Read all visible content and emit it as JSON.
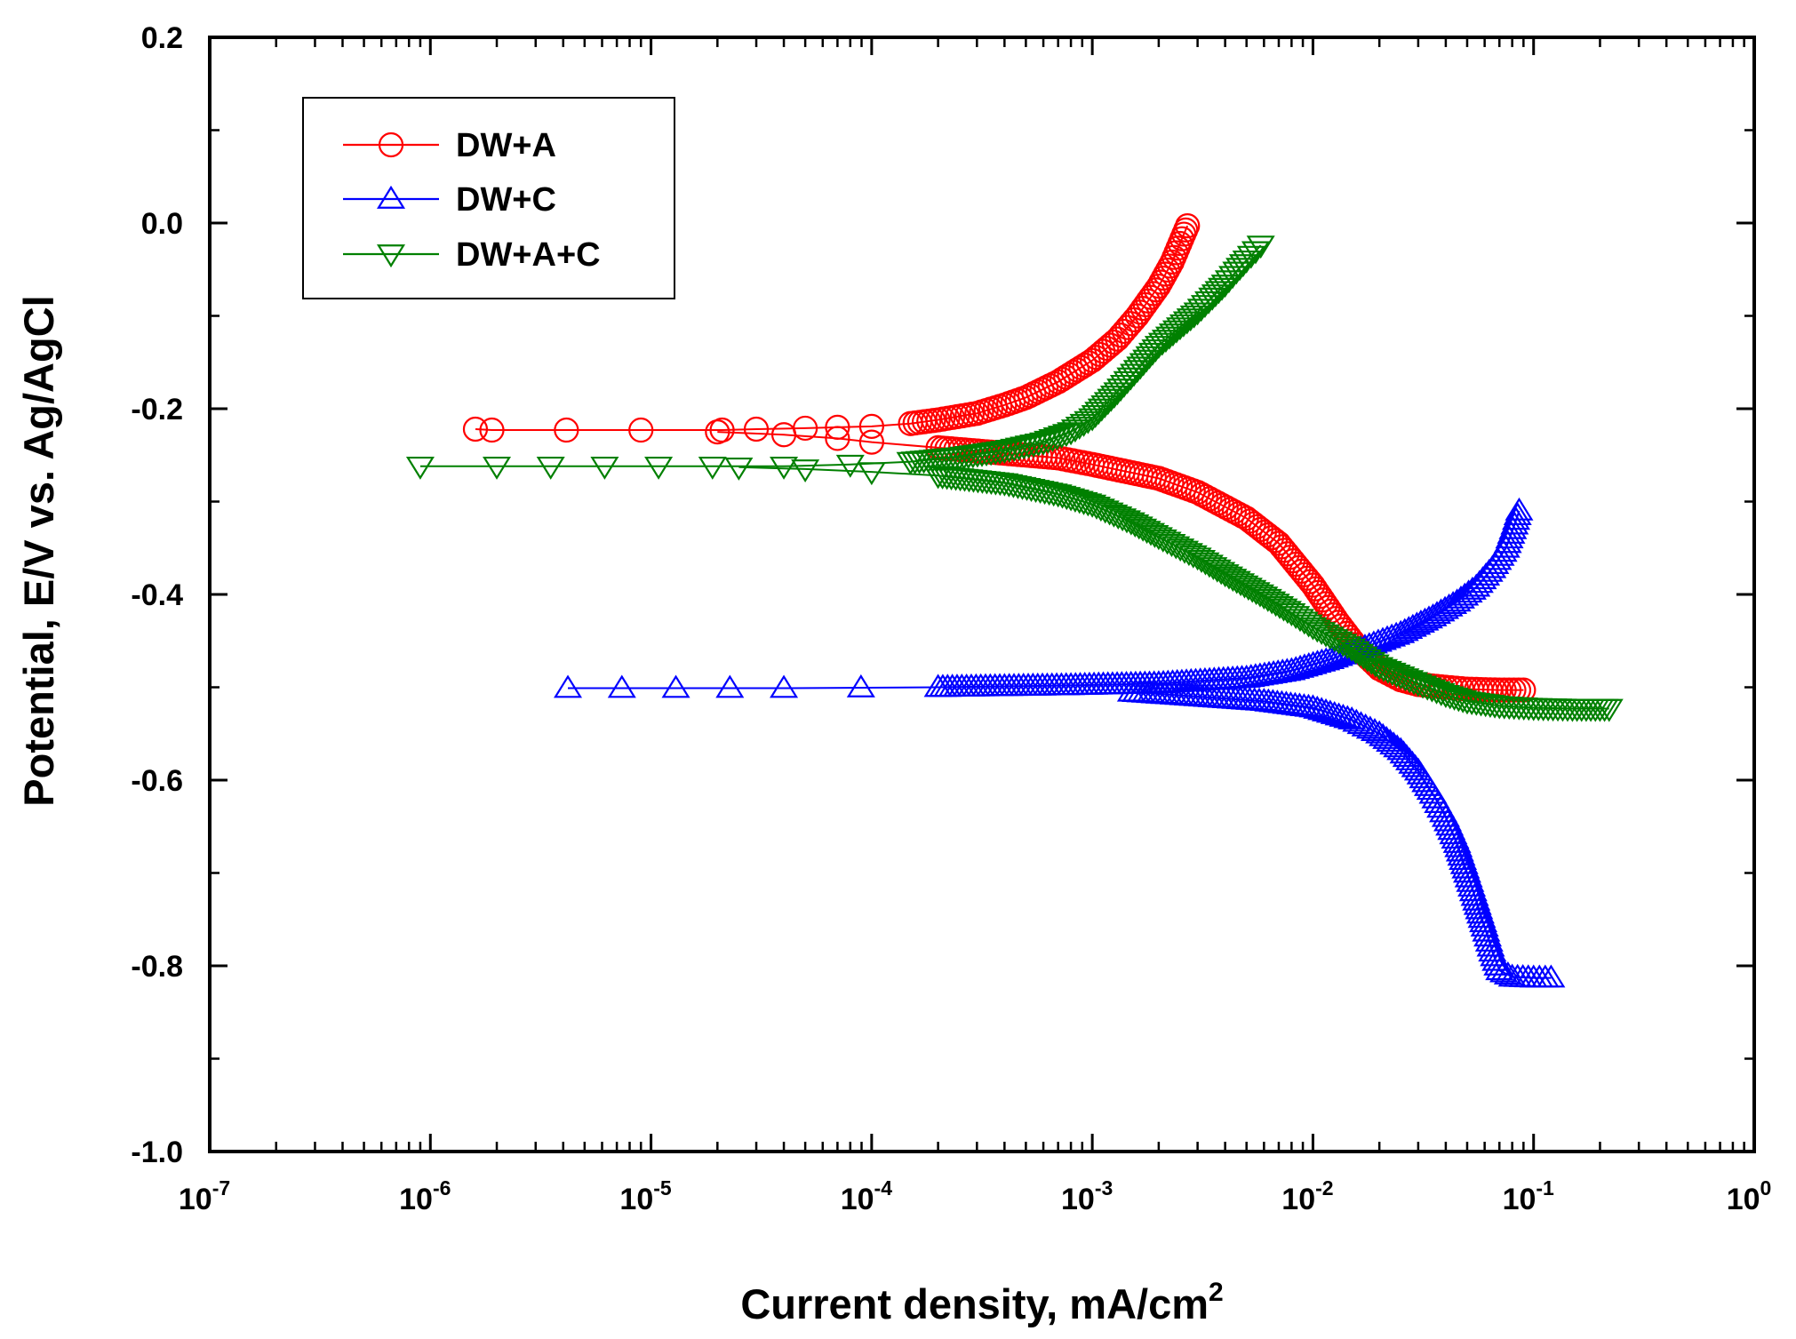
{
  "chart_data": {
    "type": "scatter",
    "title": "",
    "xlabel": "Current density, mA/cm",
    "xlabel_sup": "2",
    "ylabel": "Potential, E/V vs. Ag/AgCl",
    "xscale": "log",
    "xlim": [
      1e-07,
      1
    ],
    "ylim": [
      -1.0,
      0.2
    ],
    "x_ticks": [
      {
        "value": 1e-07,
        "base": "10",
        "exp": "-7"
      },
      {
        "value": 1e-06,
        "base": "10",
        "exp": "-6"
      },
      {
        "value": 1e-05,
        "base": "10",
        "exp": "-5"
      },
      {
        "value": 0.0001,
        "base": "10",
        "exp": "-4"
      },
      {
        "value": 0.001,
        "base": "10",
        "exp": "-3"
      },
      {
        "value": 0.01,
        "base": "10",
        "exp": "-2"
      },
      {
        "value": 0.1,
        "base": "10",
        "exp": "-1"
      },
      {
        "value": 1,
        "base": "10",
        "exp": "0"
      }
    ],
    "y_ticks": [
      {
        "value": 0.2,
        "label": "0.2"
      },
      {
        "value": 0.0,
        "label": "0.0"
      },
      {
        "value": -0.2,
        "label": "-0.2"
      },
      {
        "value": -0.4,
        "label": "-0.4"
      },
      {
        "value": -0.6,
        "label": "-0.6"
      },
      {
        "value": -0.8,
        "label": "-0.8"
      },
      {
        "value": -1.0,
        "label": "-1.0"
      }
    ],
    "legend_position": "top-left",
    "series": [
      {
        "name": "DW+A",
        "color": "#ff0000",
        "marker": "circle",
        "branches": [
          {
            "role": "anodic",
            "points": [
              [
                1.6e-06,
                -0.222
              ],
              [
                1.9e-06,
                -0.223
              ],
              [
                9e-06,
                -0.223
              ],
              [
                2.1e-05,
                -0.223
              ],
              [
                3e-05,
                -0.222
              ],
              [
                5e-05,
                -0.221
              ],
              [
                7e-05,
                -0.22
              ],
              [
                0.0001,
                -0.219
              ],
              [
                0.00015,
                -0.216
              ],
              [
                0.0002,
                -0.212
              ],
              [
                0.0003,
                -0.205
              ],
              [
                0.0004,
                -0.196
              ],
              [
                0.0005,
                -0.188
              ],
              [
                0.0007,
                -0.171
              ],
              [
                0.001,
                -0.148
              ],
              [
                0.0013,
                -0.125
              ],
              [
                0.0016,
                -0.1
              ],
              [
                0.002,
                -0.068
              ],
              [
                0.0023,
                -0.042
              ],
              [
                0.0026,
                -0.012
              ],
              [
                0.0027,
                -0.003
              ]
            ]
          },
          {
            "role": "cathodic",
            "points": [
              [
                2e-05,
                -0.225
              ],
              [
                4e-05,
                -0.228
              ],
              [
                7e-05,
                -0.232
              ],
              [
                0.0001,
                -0.236
              ],
              [
                0.0002,
                -0.242
              ],
              [
                0.0004,
                -0.248
              ],
              [
                0.0007,
                -0.253
              ],
              [
                0.001,
                -0.26
              ],
              [
                0.002,
                -0.275
              ],
              [
                0.003,
                -0.29
              ],
              [
                0.005,
                -0.318
              ],
              [
                0.007,
                -0.345
              ],
              [
                0.01,
                -0.39
              ],
              [
                0.013,
                -0.43
              ],
              [
                0.016,
                -0.458
              ],
              [
                0.02,
                -0.48
              ],
              [
                0.025,
                -0.492
              ],
              [
                0.03,
                -0.497
              ],
              [
                0.04,
                -0.5
              ],
              [
                0.05,
                -0.502
              ],
              [
                0.07,
                -0.503
              ],
              [
                0.09,
                -0.503
              ]
            ]
          }
        ]
      },
      {
        "name": "DW+C",
        "color": "#0000ff",
        "marker": "triangle-up",
        "branches": [
          {
            "role": "anodic",
            "points": [
              [
                4.2e-06,
                -0.501
              ],
              [
                4e-05,
                -0.501
              ],
              [
                0.0002,
                -0.5
              ],
              [
                0.0004,
                -0.499
              ],
              [
                0.0008,
                -0.498
              ],
              [
                0.002,
                -0.496
              ],
              [
                0.005,
                -0.49
              ],
              [
                0.008,
                -0.482
              ],
              [
                0.012,
                -0.47
              ],
              [
                0.018,
                -0.455
              ],
              [
                0.025,
                -0.442
              ],
              [
                0.035,
                -0.424
              ],
              [
                0.045,
                -0.408
              ],
              [
                0.055,
                -0.392
              ],
              [
                0.065,
                -0.372
              ],
              [
                0.075,
                -0.35
              ],
              [
                0.082,
                -0.325
              ],
              [
                0.086,
                -0.31
              ]
            ]
          },
          {
            "role": "cathodic",
            "points": [
              [
                0.0015,
                -0.505
              ],
              [
                0.003,
                -0.51
              ],
              [
                0.006,
                -0.515
              ],
              [
                0.01,
                -0.522
              ],
              [
                0.015,
                -0.535
              ],
              [
                0.02,
                -0.55
              ],
              [
                0.025,
                -0.568
              ],
              [
                0.03,
                -0.59
              ],
              [
                0.035,
                -0.615
              ],
              [
                0.04,
                -0.64
              ],
              [
                0.045,
                -0.668
              ],
              [
                0.05,
                -0.7
              ],
              [
                0.055,
                -0.73
              ],
              [
                0.06,
                -0.758
              ],
              [
                0.065,
                -0.785
              ],
              [
                0.07,
                -0.805
              ],
              [
                0.08,
                -0.812
              ],
              [
                0.1,
                -0.813
              ],
              [
                0.12,
                -0.813
              ]
            ]
          }
        ]
      },
      {
        "name": "DW+A+C",
        "color": "#008000",
        "marker": "triangle-down",
        "branches": [
          {
            "role": "anodic",
            "points": [
              [
                9e-07,
                -0.262
              ],
              [
                2e-06,
                -0.262
              ],
              [
                1.9e-05,
                -0.262
              ],
              [
                4e-05,
                -0.262
              ],
              [
                8e-05,
                -0.26
              ],
              [
                0.00015,
                -0.257
              ],
              [
                0.00025,
                -0.252
              ],
              [
                0.0004,
                -0.245
              ],
              [
                0.0006,
                -0.236
              ],
              [
                0.0008,
                -0.225
              ],
              [
                0.001,
                -0.21
              ],
              [
                0.0013,
                -0.182
              ],
              [
                0.0016,
                -0.158
              ],
              [
                0.002,
                -0.132
              ],
              [
                0.0025,
                -0.112
              ],
              [
                0.003,
                -0.096
              ],
              [
                0.0035,
                -0.08
              ],
              [
                0.004,
                -0.066
              ],
              [
                0.0045,
                -0.052
              ],
              [
                0.005,
                -0.04
              ],
              [
                0.0055,
                -0.03
              ],
              [
                0.0058,
                -0.024
              ]
            ]
          },
          {
            "role": "cathodic",
            "points": [
              [
                2.5e-05,
                -0.263
              ],
              [
                5e-05,
                -0.265
              ],
              [
                0.0001,
                -0.268
              ],
              [
                0.0002,
                -0.272
              ],
              [
                0.0004,
                -0.28
              ],
              [
                0.0007,
                -0.292
              ],
              [
                0.001,
                -0.303
              ],
              [
                0.0015,
                -0.322
              ],
              [
                0.002,
                -0.338
              ],
              [
                0.003,
                -0.36
              ],
              [
                0.004,
                -0.378
              ],
              [
                0.006,
                -0.402
              ],
              [
                0.008,
                -0.42
              ],
              [
                0.01,
                -0.435
              ],
              [
                0.015,
                -0.458
              ],
              [
                0.02,
                -0.478
              ],
              [
                0.03,
                -0.496
              ],
              [
                0.04,
                -0.508
              ],
              [
                0.05,
                -0.515
              ],
              [
                0.07,
                -0.52
              ],
              [
                0.1,
                -0.522
              ],
              [
                0.15,
                -0.523
              ],
              [
                0.22,
                -0.523
              ]
            ]
          }
        ]
      }
    ]
  }
}
